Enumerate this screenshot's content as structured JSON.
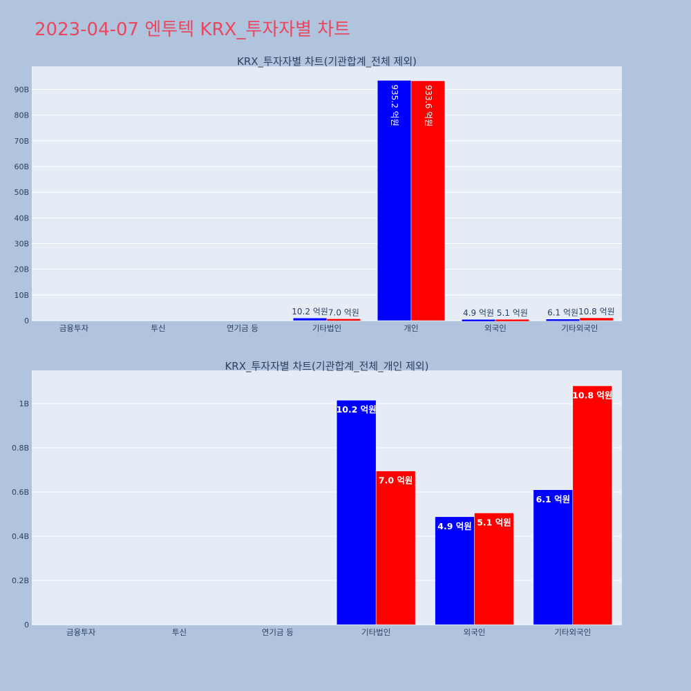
{
  "page": {
    "title": "2023-04-07 엔투텍 KRX_투자자별 차트"
  },
  "colors": {
    "buy": "#0000ff",
    "sell": "#ff0000",
    "plot_bg": "#e5ecf6",
    "page_bg": "#b0c4de",
    "title": "#e8475f"
  },
  "chart_data": [
    {
      "type": "bar",
      "title": "KRX_투자자별 차트(기관합계_전체 제외)",
      "categories": [
        "금융투자",
        "투신",
        "연기금 등",
        "기타법인",
        "개인",
        "외국인",
        "기타외국인"
      ],
      "series": [
        {
          "values": [
            0,
            0,
            0,
            1020000000,
            93520000000,
            490000000,
            610000000
          ],
          "labels": [
            "",
            "",
            "",
            "10.2 억원",
            "935.2 억원",
            "4.9 억원",
            "6.1 억원"
          ]
        },
        {
          "values": [
            0,
            0,
            0,
            700000000,
            93360000000,
            510000000,
            1080000000
          ],
          "labels": [
            "",
            "",
            "",
            "7.0 억원",
            "933.6 억원",
            "5.1 억원",
            "10.8 억원"
          ]
        }
      ],
      "ylim": [
        0,
        99000000000
      ],
      "yticks": [
        0,
        10000000000,
        20000000000,
        30000000000,
        40000000000,
        50000000000,
        60000000000,
        70000000000,
        80000000000,
        90000000000
      ],
      "yticklabels": [
        "0",
        "10B",
        "20B",
        "30B",
        "40B",
        "50B",
        "60B",
        "70B",
        "80B",
        "90B"
      ],
      "grid": true
    },
    {
      "type": "bar",
      "title": "KRX_투자자별 차트(기관합계_전체_개인 제외)",
      "categories": [
        "금융투자",
        "투신",
        "연기금 등",
        "기타법인",
        "외국인",
        "기타외국인"
      ],
      "series": [
        {
          "values": [
            0,
            0,
            0,
            1015000000,
            488000000,
            610000000
          ],
          "labels": [
            "",
            "",
            "",
            "10.2 억원",
            "4.9 억원",
            "6.1 억원"
          ]
        },
        {
          "values": [
            0,
            0,
            0,
            695000000,
            505000000,
            1080000000
          ],
          "labels": [
            "",
            "",
            "",
            "7.0 억원",
            "5.1 억원",
            "10.8 억원"
          ]
        }
      ],
      "ylim": [
        0,
        1150000000
      ],
      "yticks": [
        0,
        200000000,
        400000000,
        600000000,
        800000000,
        1000000000
      ],
      "yticklabels": [
        "0",
        "0.2B",
        "0.4B",
        "0.6B",
        "0.8B",
        "1B"
      ],
      "grid": true
    }
  ]
}
